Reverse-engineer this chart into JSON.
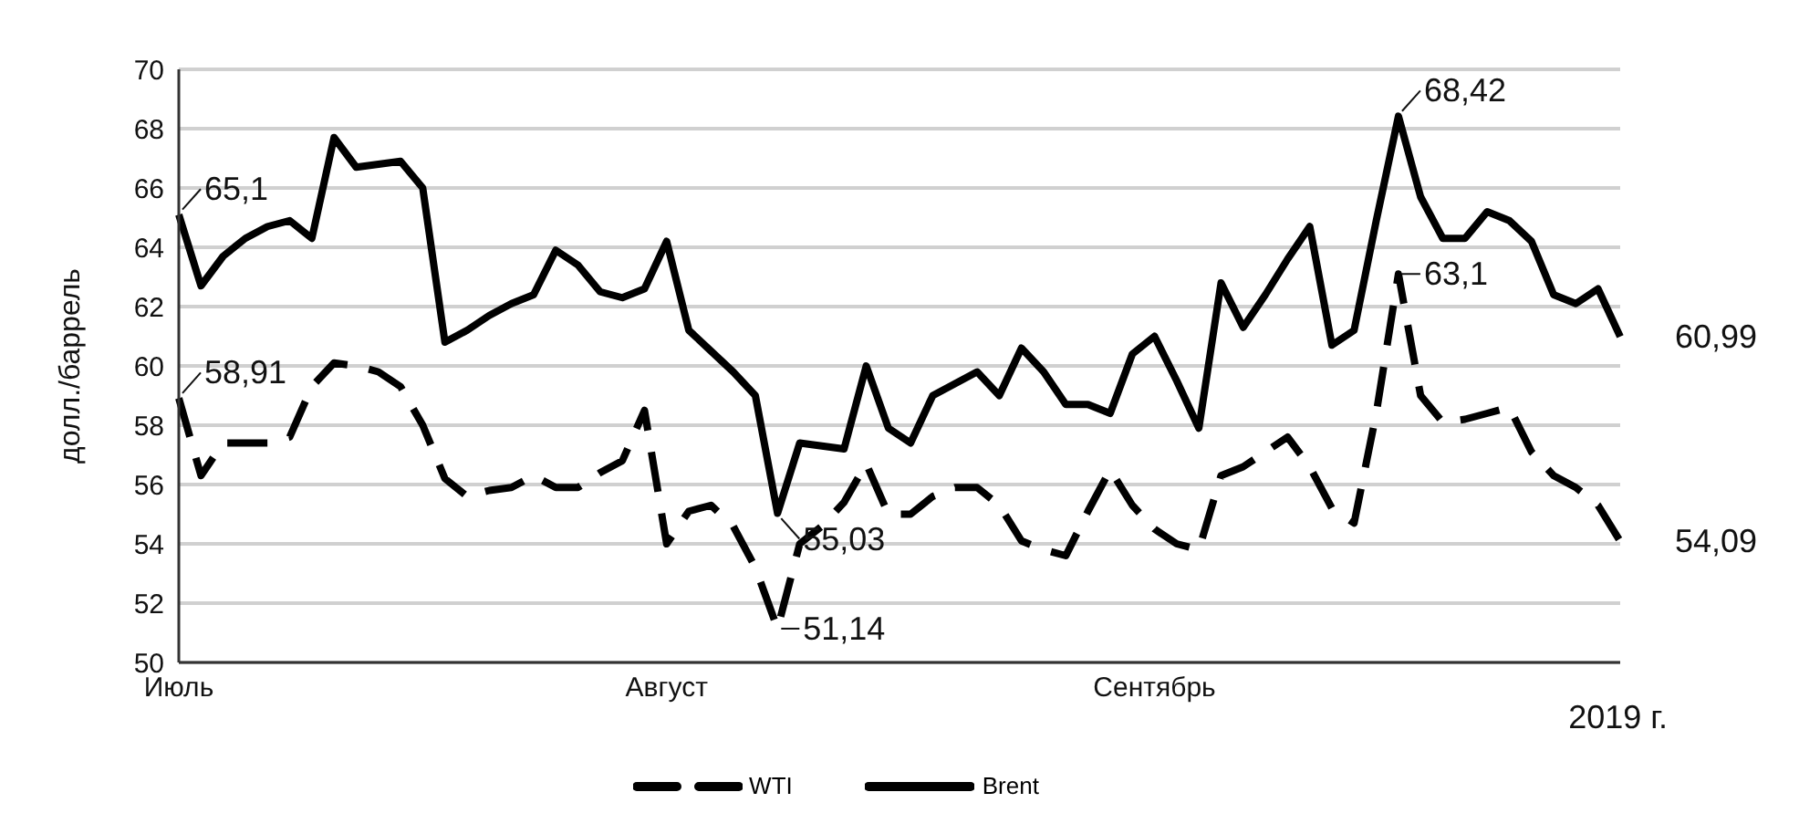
{
  "chart_data": {
    "type": "line",
    "ylabel": "долл./баррель",
    "xlabel": "2019 г.",
    "categories": [
      "Июль",
      null,
      null,
      null,
      null,
      null,
      null,
      null,
      null,
      null,
      null,
      null,
      null,
      null,
      null,
      null,
      null,
      null,
      null,
      null,
      null,
      null,
      "Август",
      null,
      null,
      null,
      null,
      null,
      null,
      null,
      null,
      null,
      null,
      null,
      null,
      null,
      null,
      null,
      null,
      null,
      null,
      null,
      null,
      null,
      "Сентябрь",
      null,
      null,
      null,
      null,
      null,
      null,
      null,
      null,
      null,
      null,
      null,
      null,
      null,
      null,
      null,
      null,
      null,
      null,
      null,
      null,
      null
    ],
    "series": [
      {
        "name": "WTI",
        "color": "#000000",
        "line_style": "dashed",
        "values": [
          58.91,
          56.3,
          57.4,
          57.4,
          57.4,
          57.6,
          59.3,
          60.1,
          60.0,
          59.8,
          59.3,
          58.0,
          56.2,
          55.6,
          55.8,
          55.9,
          56.3,
          55.9,
          55.9,
          56.4,
          56.8,
          58.5,
          54.0,
          55.1,
          55.3,
          54.6,
          53.2,
          51.14,
          54.0,
          54.6,
          55.4,
          56.7,
          55.0,
          55.0,
          55.6,
          55.9,
          55.9,
          55.3,
          54.1,
          53.8,
          53.6,
          55.1,
          56.5,
          55.3,
          54.5,
          54.0,
          53.8,
          56.3,
          56.6,
          57.1,
          57.6,
          56.6,
          55.2,
          54.7,
          58.4,
          63.1,
          59.0,
          58.1,
          58.2,
          58.4,
          58.6,
          57.1,
          56.3,
          55.9,
          55.3,
          54.09
        ],
        "value_labels": [
          "58,91",
          null,
          null,
          null,
          null,
          null,
          null,
          null,
          null,
          null,
          null,
          null,
          null,
          null,
          null,
          null,
          null,
          null,
          null,
          null,
          null,
          null,
          null,
          null,
          null,
          null,
          null,
          "51,14",
          null,
          null,
          null,
          null,
          null,
          null,
          null,
          null,
          null,
          null,
          null,
          null,
          null,
          null,
          null,
          null,
          null,
          null,
          null,
          null,
          null,
          null,
          null,
          null,
          null,
          null,
          null,
          "63,1",
          null,
          null,
          null,
          null,
          null,
          null,
          null,
          null,
          null,
          "54,09"
        ]
      },
      {
        "name": "Brent",
        "color": "#000000",
        "line_style": "solid",
        "values": [
          65.1,
          62.7,
          63.7,
          64.3,
          64.7,
          64.9,
          64.3,
          67.7,
          66.7,
          66.8,
          66.9,
          66.0,
          60.8,
          61.2,
          61.7,
          62.1,
          62.4,
          63.9,
          63.4,
          62.5,
          62.3,
          62.6,
          64.2,
          61.2,
          60.5,
          59.8,
          59.0,
          55.03,
          57.4,
          57.3,
          57.2,
          60.0,
          57.9,
          57.4,
          59.0,
          59.4,
          59.8,
          59.0,
          60.6,
          59.8,
          58.7,
          58.7,
          58.4,
          60.4,
          61.0,
          59.5,
          57.9,
          62.8,
          61.3,
          62.4,
          63.6,
          64.7,
          60.7,
          61.2,
          64.9,
          68.42,
          65.7,
          64.3,
          64.3,
          65.2,
          64.9,
          64.2,
          62.4,
          62.1,
          62.6,
          60.99
        ],
        "value_labels": [
          "65,1",
          null,
          null,
          null,
          null,
          null,
          null,
          null,
          null,
          null,
          null,
          null,
          null,
          null,
          null,
          null,
          null,
          null,
          null,
          null,
          null,
          null,
          null,
          null,
          null,
          null,
          null,
          "55,03",
          null,
          null,
          null,
          null,
          null,
          null,
          null,
          null,
          null,
          null,
          null,
          null,
          null,
          null,
          null,
          null,
          null,
          null,
          null,
          null,
          null,
          null,
          null,
          null,
          null,
          null,
          null,
          "68,42",
          null,
          null,
          null,
          null,
          null,
          null,
          null,
          null,
          null,
          "60,99"
        ]
      }
    ],
    "ylim": [
      50,
      70
    ],
    "yticks": [
      50,
      52,
      54,
      56,
      58,
      60,
      62,
      64,
      66,
      68,
      70
    ],
    "grid": "y",
    "legend": "bottom",
    "marker": "none"
  }
}
